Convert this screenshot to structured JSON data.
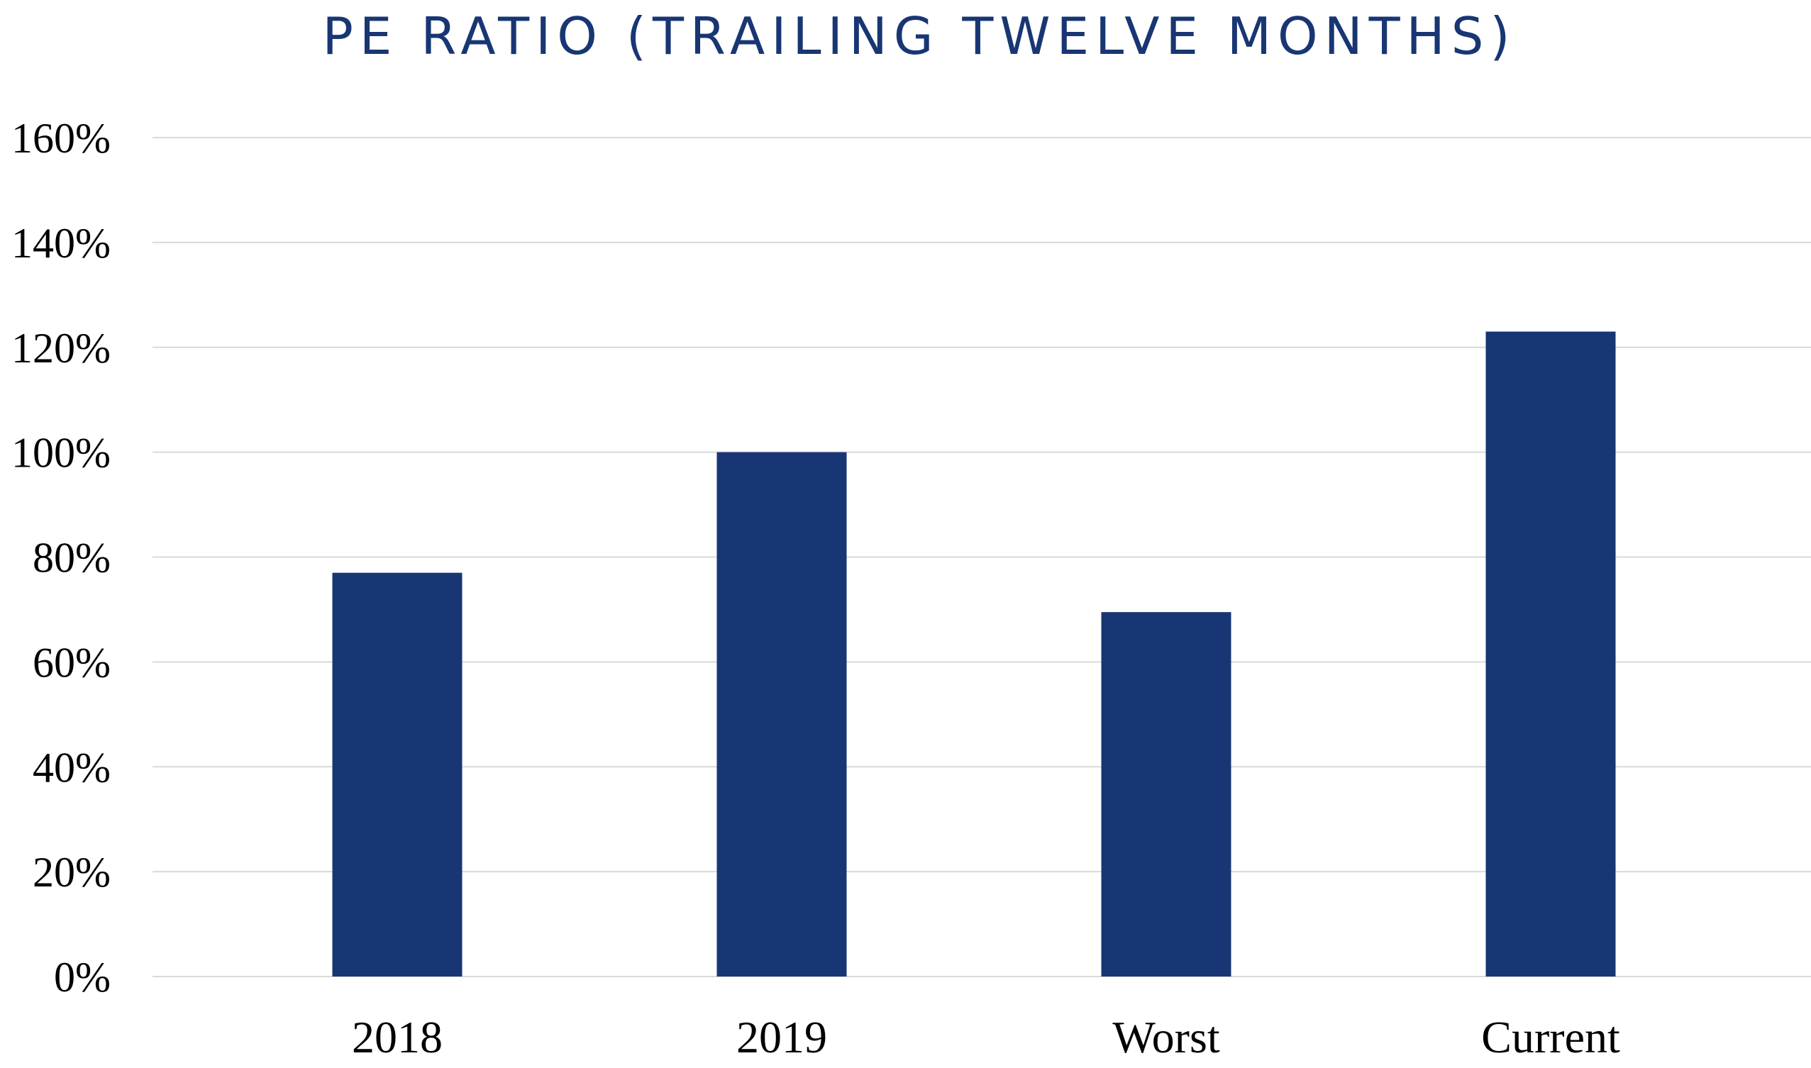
{
  "chart_data": {
    "type": "bar",
    "title": "PE RATIO (TRAILING TWELVE MONTHS)",
    "xlabel": "",
    "ylabel": "",
    "categories": [
      "2018",
      "2019",
      "Worst",
      "Current"
    ],
    "values": [
      0.77,
      1.0,
      0.695,
      1.23
    ],
    "value_format": "percent",
    "ylim": [
      0,
      1.6
    ],
    "yticks": [
      0,
      0.2,
      0.4,
      0.6,
      0.8,
      1.0,
      1.2,
      1.4,
      1.6
    ],
    "ytick_labels": [
      "0%",
      "20%",
      "40%",
      "60%",
      "80%",
      "100%",
      "120%",
      "140%",
      "160%"
    ],
    "grid": true,
    "legend": "none",
    "colors": {
      "bar": "#183673",
      "title": "#183673",
      "grid": "#d9d9d9",
      "axis_text": "#000000"
    }
  }
}
